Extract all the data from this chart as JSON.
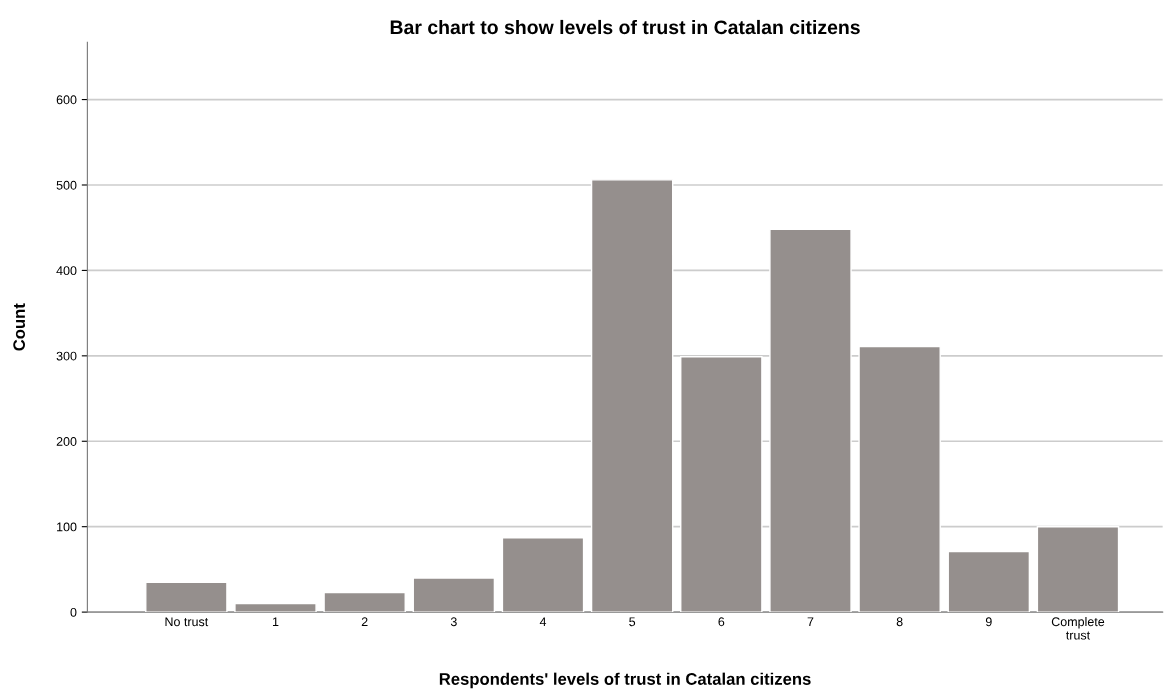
{
  "chart_data": {
    "type": "bar",
    "title": "Bar chart to show levels of trust in Catalan citizens",
    "xlabel": "Respondents' levels of trust in Catalan citizens",
    "ylabel": "Count",
    "categories": [
      "No trust",
      "1",
      "2",
      "3",
      "4",
      "5",
      "6",
      "7",
      "8",
      "9",
      "Complete\ntrust"
    ],
    "values": [
      35,
      10,
      23,
      40,
      87,
      506,
      299,
      448,
      311,
      71,
      100
    ],
    "color": "#958f8d",
    "ylim": [
      0,
      667
    ],
    "yticks": [
      0,
      100,
      200,
      300,
      400,
      500,
      600
    ],
    "grid": "y"
  }
}
